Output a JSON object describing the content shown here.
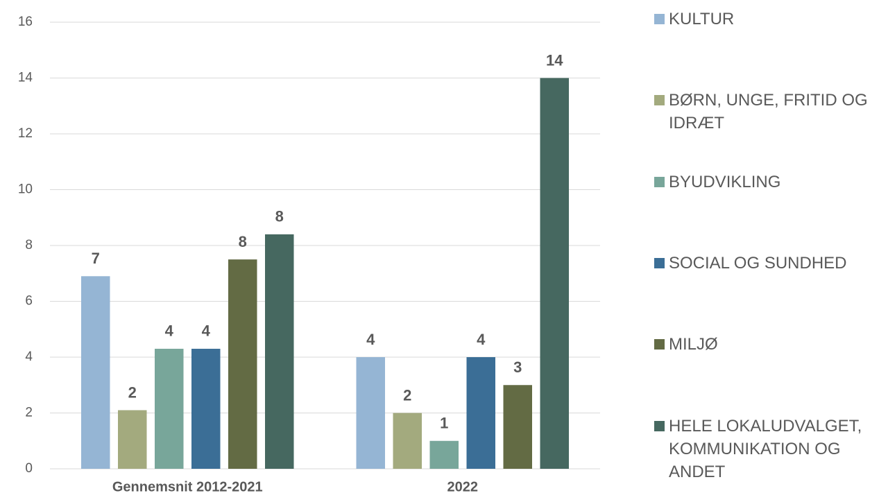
{
  "chart_data": {
    "type": "bar",
    "categories": [
      "Gennemsnit 2012-2021",
      "2022"
    ],
    "series": [
      {
        "name": "KULTUR",
        "color": "#95b5d4",
        "values": [
          6.9,
          4
        ],
        "value_labels": [
          "7",
          "4"
        ]
      },
      {
        "name": "BØRN, UNGE, FRITID OG IDRÆT",
        "color": "#a3aa7e",
        "values": [
          2.1,
          2
        ],
        "value_labels": [
          "2",
          "2"
        ]
      },
      {
        "name": "BYUDVIKLING",
        "color": "#78a69a",
        "values": [
          4.3,
          1
        ],
        "value_labels": [
          "4",
          "1"
        ]
      },
      {
        "name": "SOCIAL OG SUNDHED",
        "color": "#3b6e96",
        "values": [
          4.3,
          4
        ],
        "value_labels": [
          "4",
          "4"
        ]
      },
      {
        "name": "MILJØ",
        "color": "#636b44",
        "values": [
          7.5,
          3
        ],
        "value_labels": [
          "8",
          "3"
        ]
      },
      {
        "name": "HELE LOKALUDVALGET, KOMMUNIKATION OG ANDET",
        "color": "#466860",
        "values": [
          8.4,
          14
        ],
        "value_labels": [
          "8",
          "14"
        ]
      }
    ],
    "ylim": [
      0,
      16
    ],
    "yticks": [
      0,
      2,
      4,
      6,
      8,
      10,
      12,
      14,
      16
    ],
    "grid": true,
    "legend": "right"
  }
}
